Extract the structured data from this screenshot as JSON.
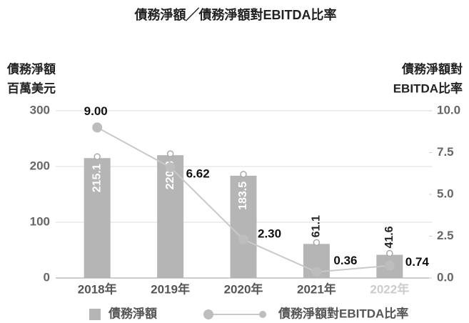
{
  "chart_data": {
    "type": "bar_line",
    "title": "債務淨額╱債務淨額對EBITDA比率",
    "y_label": [
      "債務淨額",
      "百萬美元"
    ],
    "y2_label": [
      "債務淨額對",
      "EBITDA比率"
    ],
    "categories": [
      "2018年",
      "2019年",
      "2020年",
      "2021年",
      "2022年"
    ],
    "category_label_colors": [
      "#555555",
      "#555555",
      "#555555",
      "#555555",
      "#cccccc"
    ],
    "series": [
      {
        "name": "債務淨額",
        "type": "bar",
        "color": "#b5b5b5",
        "values": [
          215.1,
          220.3,
          183.5,
          61.1,
          41.6
        ]
      },
      {
        "name": "債務淨額對EBITDA比率",
        "type": "line",
        "axis": "y2",
        "color": "#c9c9c9",
        "marker_color": "#bdbdbd",
        "values": [
          9.0,
          6.62,
          2.3,
          0.36,
          0.74
        ],
        "value_labels": [
          "9.00",
          "6.62",
          "2.30",
          "0.36",
          "0.74"
        ]
      }
    ],
    "ylim": [
      0,
      300
    ],
    "yticks": [
      0,
      100,
      200,
      300
    ],
    "y2lim": [
      0,
      10
    ],
    "y2ticks": [
      {
        "value": 0,
        "label": "0.0"
      },
      2.5,
      {
        "value": 5,
        "label": "5.0"
      },
      7.5,
      {
        "value": 10,
        "label": "10.0"
      }
    ],
    "grid": true,
    "legend": "bottom"
  }
}
